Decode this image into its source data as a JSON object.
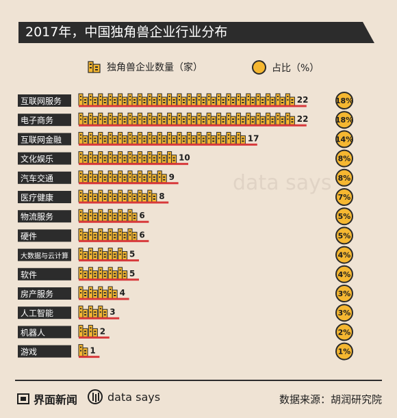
{
  "title": "2017年，中国独角兽企业行业分布",
  "legend": {
    "count_label": "独角兽企业数量（家）",
    "share_label": "占比（%）"
  },
  "watermark": "data says",
  "footer": {
    "brand": "界面新闻",
    "data_says": "data says",
    "source": "数据来源：胡润研究院"
  },
  "colors": {
    "building": "#f5b731",
    "underline": "#d7393b",
    "label_bg": "#2c2c2c",
    "circle": "#f5b731"
  },
  "chart_data": {
    "type": "bar",
    "categories": [
      "互联网服务",
      "电子商务",
      "互联网金融",
      "文化娱乐",
      "汽车交通",
      "医疗健康",
      "物流服务",
      "硬件",
      "大数据与云计算",
      "软件",
      "房产服务",
      "人工智能",
      "机器人",
      "游戏"
    ],
    "series": [
      {
        "name": "独角兽企业数量（家）",
        "values": [
          22,
          22,
          17,
          10,
          9,
          8,
          6,
          6,
          5,
          5,
          4,
          3,
          2,
          1
        ]
      },
      {
        "name": "占比（%）",
        "values": [
          18,
          18,
          14,
          8,
          8,
          7,
          5,
          5,
          4,
          4,
          3,
          3,
          2,
          1
        ]
      }
    ],
    "share_labels": [
      "18%",
      "18%",
      "14%",
      "8%",
      "8%",
      "7%",
      "5%",
      "5%",
      "4%",
      "4%",
      "3%",
      "3%",
      "2%",
      "1%"
    ]
  }
}
